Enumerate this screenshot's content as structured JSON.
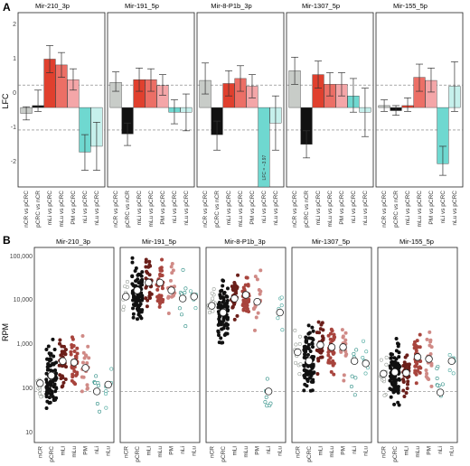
{
  "panel_a": {
    "label": "A",
    "ylabel": "LFC",
    "y_ticks": [
      "2",
      "1",
      "0",
      "-1",
      "-2"
    ],
    "threshold_lines": [
      0.58,
      -0.58
    ],
    "comparisons": [
      "nCR vs pCRC",
      "pCRC vs nCR",
      "mLi vs pCRC",
      "mLu vs pCRC",
      "PM vs pCRC",
      "nLi vs pCRC",
      "nLu vs pCRC"
    ],
    "bar_colors": [
      "#c8ccc8",
      "#111111",
      "#e0402e",
      "#ec6f66",
      "#f4a6a8",
      "#6fd8d0",
      "#c6f0ec"
    ],
    "annotation": "LFC = −3.97",
    "facets": [
      {
        "title": "Mir-210_3p",
        "values": [
          -0.15,
          0.05,
          1.25,
          1.1,
          0.72,
          -1.15,
          -1.0
        ],
        "lo": [
          -0.32,
          -0.1,
          0.9,
          0.78,
          0.45,
          -1.62,
          -1.62
        ],
        "hi": [
          0.02,
          0.45,
          1.6,
          1.42,
          1.0,
          -0.7,
          -0.38
        ]
      },
      {
        "title": "Mir-191_5p",
        "values": [
          0.65,
          -0.68,
          0.72,
          0.72,
          0.57,
          -0.12,
          -0.12
        ],
        "lo": [
          0.42,
          -0.98,
          0.42,
          0.42,
          0.32,
          -0.42,
          -0.6
        ],
        "hi": [
          0.92,
          -0.4,
          1.02,
          1.0,
          0.85,
          0.2,
          0.35
        ]
      },
      {
        "title": "Mir-8-P1b_3p",
        "values": [
          0.7,
          -0.7,
          0.62,
          0.75,
          0.55,
          -3.97,
          -0.4
        ],
        "lo": [
          0.35,
          -1.1,
          0.3,
          0.42,
          0.25,
          -4.3,
          -1.1
        ],
        "hi": [
          1.15,
          -0.35,
          0.95,
          1.08,
          0.85,
          -3.6,
          0.3
        ]
      },
      {
        "title": "Mir-1307_5p",
        "values": [
          0.95,
          -0.95,
          0.85,
          0.6,
          0.6,
          0.3,
          -0.12
        ],
        "lo": [
          0.6,
          -1.3,
          0.5,
          0.3,
          0.3,
          -0.12,
          -0.75
        ],
        "hi": [
          1.3,
          -0.6,
          1.2,
          0.9,
          0.9,
          0.75,
          0.5
        ]
      },
      {
        "title": "Mir-155_5p",
        "values": [
          0.05,
          -0.08,
          0.05,
          0.78,
          0.7,
          -1.45,
          0.55
        ],
        "lo": [
          -0.1,
          -0.2,
          -0.1,
          0.42,
          0.4,
          -1.75,
          -0.1
        ],
        "hi": [
          0.2,
          0.05,
          0.25,
          1.12,
          1.02,
          -1.0,
          1.18
        ]
      }
    ]
  },
  "panel_b": {
    "label": "B",
    "ylabel": "RPM",
    "y_ticks": [
      "100,000",
      "10,000",
      "1,000",
      "100",
      "10"
    ],
    "reference_line": 100,
    "groups": [
      "nCR",
      "pCRC",
      "mLi",
      "mLu",
      "PM",
      "nLi",
      "nLu"
    ],
    "dot_colors": [
      "#9aa09a",
      "#111111",
      "#6b1f1a",
      "#a8443d",
      "#d08a86",
      "#2f8f86",
      "#4aa89e"
    ],
    "facets": [
      {
        "title": "Mir-210_3p",
        "medians": [
          150,
          220,
          450,
          420,
          320,
          100,
          140
        ]
      },
      {
        "title": "Mir-191_5p",
        "medians": [
          11000,
          15000,
          22000,
          22000,
          15000,
          10000,
          11000
        ]
      },
      {
        "title": "Mir-8-P1b_3p",
        "medians": [
          7000,
          5000,
          10000,
          12000,
          8500,
          100,
          5000
        ]
      },
      {
        "title": "Mir-1307_5p",
        "medians": [
          700,
          450,
          1000,
          900,
          900,
          450,
          400
        ]
      },
      {
        "title": "Mir-155_5p",
        "medians": [
          240,
          260,
          250,
          550,
          500,
          95,
          450
        ]
      }
    ]
  }
}
